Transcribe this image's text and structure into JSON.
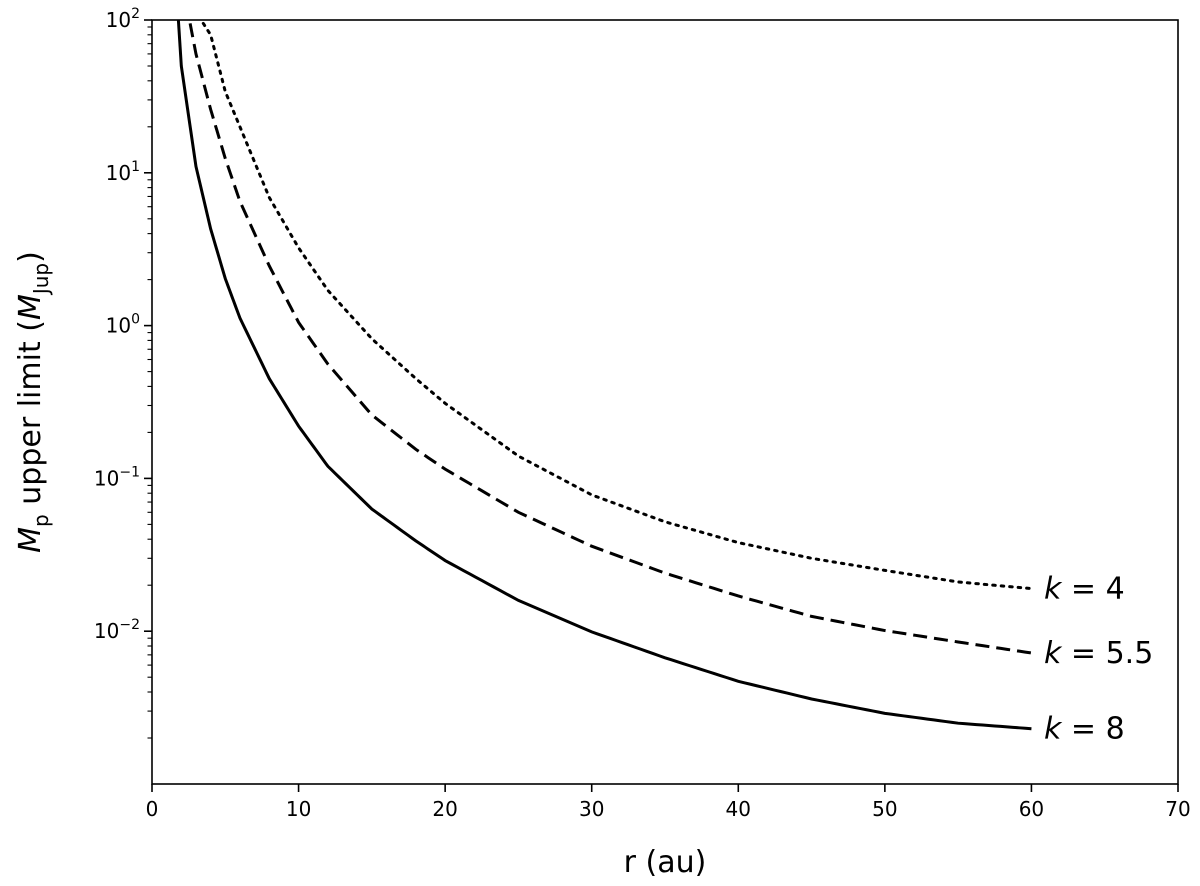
{
  "chart_data": {
    "type": "line",
    "xlabel": "r (au)",
    "ylabel_parts": {
      "symbol": "M",
      "symbol_sub": "p",
      "text": " upper limit (",
      "unit": "M",
      "unit_sub": "Jup",
      "close": ")"
    },
    "xlim": [
      0,
      70
    ],
    "ylim": [
      0.001,
      100
    ],
    "yscale": "log",
    "xticks": [
      0,
      10,
      20,
      30,
      40,
      50,
      60,
      70
    ],
    "xtick_labels": [
      "0",
      "10",
      "20",
      "30",
      "40",
      "50",
      "60",
      "70"
    ],
    "yticks": [
      {
        "value": 0.01,
        "base": "10",
        "exp": "−2"
      },
      {
        "value": 0.1,
        "base": "10",
        "exp": "−1"
      },
      {
        "value": 1,
        "base": "10",
        "exp": "0"
      },
      {
        "value": 10,
        "base": "10",
        "exp": "1"
      },
      {
        "value": 100,
        "base": "10",
        "exp": "2"
      }
    ],
    "grid": false,
    "legend": "none",
    "series": [
      {
        "label_italic": "k",
        "label_rest": " = 4",
        "style": "dotted",
        "x": [
          3.5,
          4,
          5,
          6,
          8,
          10,
          12,
          15,
          18,
          20,
          25,
          30,
          35,
          40,
          45,
          50,
          55,
          60
        ],
        "y": [
          95,
          80,
          34,
          20,
          6.9,
          3.23,
          1.7,
          0.82,
          0.45,
          0.31,
          0.14,
          0.078,
          0.052,
          0.038,
          0.03,
          0.025,
          0.021,
          0.019
        ]
      },
      {
        "label_italic": "k",
        "label_rest": " = 5.5",
        "style": "dashed",
        "x": [
          2.6,
          3,
          4,
          5,
          6,
          8,
          10,
          12,
          15,
          18,
          20,
          25,
          30,
          35,
          40,
          45,
          50,
          55,
          60
        ],
        "y": [
          95,
          60,
          26,
          12.4,
          6.5,
          2.46,
          1.05,
          0.56,
          0.26,
          0.155,
          0.115,
          0.06,
          0.036,
          0.024,
          0.017,
          0.0125,
          0.0101,
          0.0085,
          0.0072
        ]
      },
      {
        "label_italic": "k",
        "label_rest": " = 8",
        "style": "solid",
        "x": [
          1.8,
          2,
          3,
          4,
          5,
          6,
          8,
          10,
          12,
          15,
          18,
          20,
          25,
          30,
          35,
          40,
          45,
          50,
          55,
          60
        ],
        "y": [
          100,
          50,
          11,
          4.3,
          2.03,
          1.12,
          0.45,
          0.22,
          0.12,
          0.063,
          0.039,
          0.029,
          0.0159,
          0.0099,
          0.0067,
          0.0047,
          0.0036,
          0.0029,
          0.0025,
          0.0023
        ]
      }
    ]
  }
}
